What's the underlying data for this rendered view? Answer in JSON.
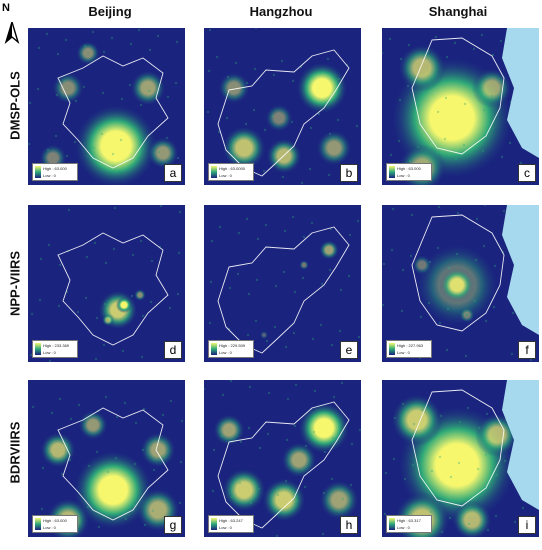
{
  "north": {
    "label": "N",
    "icon": "north-arrow-icon"
  },
  "columns": [
    "Beijing",
    "Hangzhou",
    "Shanghai"
  ],
  "rows": [
    "DMSP-OLS",
    "NPP-VIIRS",
    "BDRVIIRS"
  ],
  "panels": [
    {
      "label": "a",
      "legend_high": "High : 63.000",
      "legend_low": "Low : 0"
    },
    {
      "label": "b",
      "legend_high": "High : 63.0000",
      "legend_low": "Low : 0"
    },
    {
      "label": "c",
      "legend_high": "High : 63.000",
      "legend_low": "Low : 0"
    },
    {
      "label": "d",
      "legend_high": "High : 233.369",
      "legend_low": "Low : 0"
    },
    {
      "label": "e",
      "legend_high": "High : 229.509",
      "legend_low": "Low : 0"
    },
    {
      "label": "f",
      "legend_high": "High : 227.963",
      "legend_low": "Low : 0"
    },
    {
      "label": "g",
      "legend_high": "High : 63.000",
      "legend_low": "Low : 0"
    },
    {
      "label": "h",
      "legend_high": "High : 63.247",
      "legend_low": "Low : 0"
    },
    {
      "label": "i",
      "legend_high": "High : 63.317",
      "legend_low": "Low : 0"
    }
  ],
  "colors": {
    "low": "#1a237e",
    "mid": "#2ea878",
    "high": "#f7f76e",
    "sea": "#a6d9ee",
    "border": "#ffffff"
  }
}
